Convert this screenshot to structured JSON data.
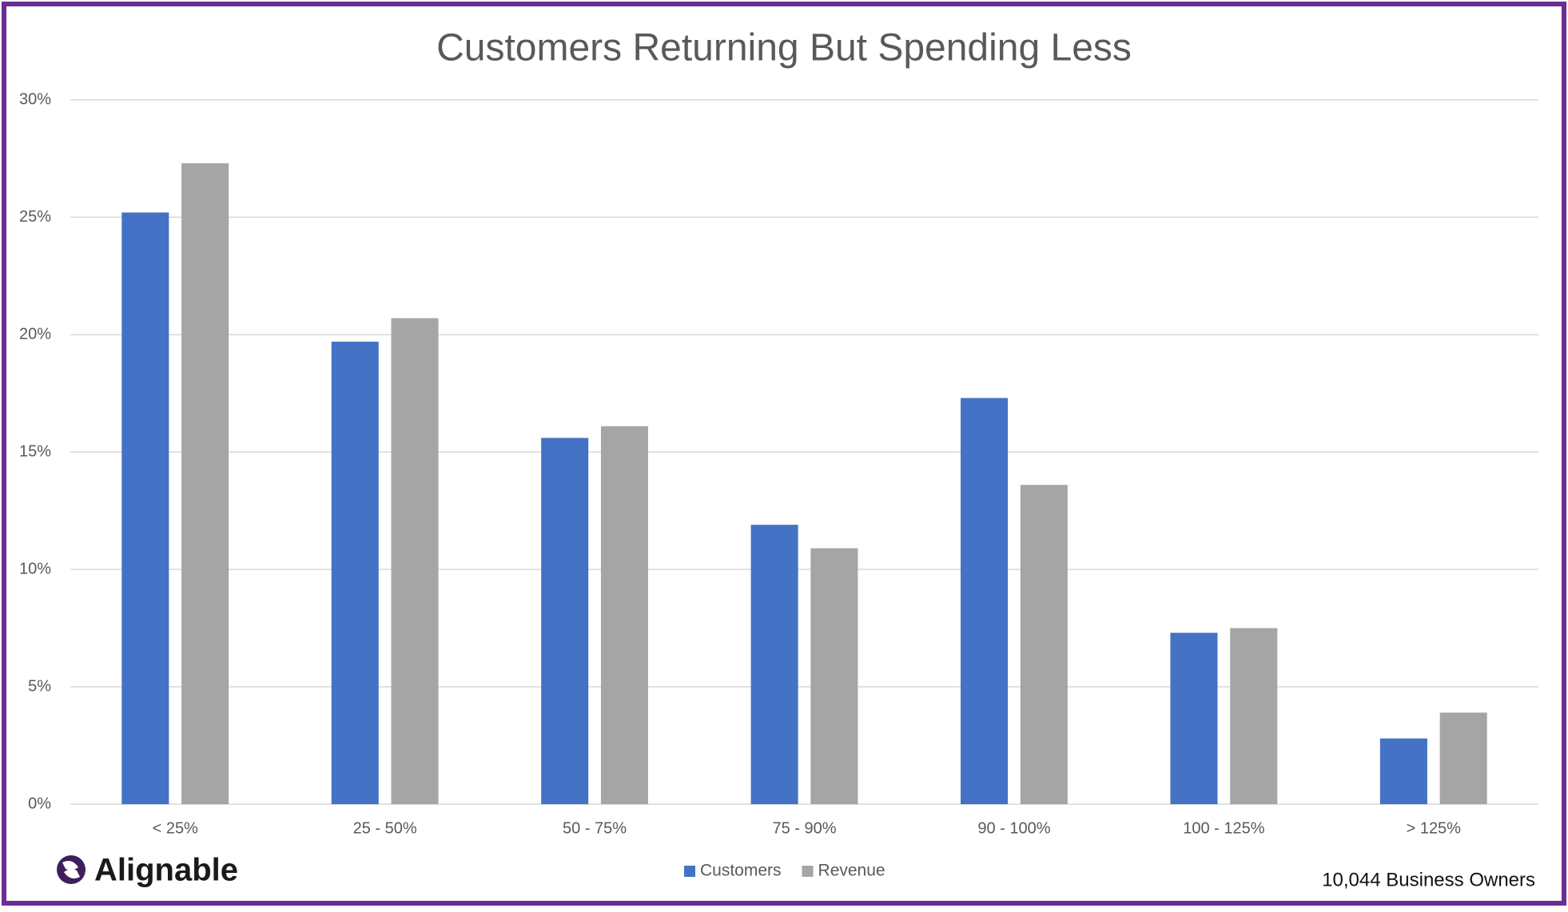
{
  "chart_data": {
    "type": "bar",
    "title": "Customers Returning But Spending Less",
    "categories": [
      "< 25%",
      "25 - 50%",
      "50 - 75%",
      "75 - 90%",
      "90 - 100%",
      "100 - 125%",
      "> 125%"
    ],
    "series": [
      {
        "name": "Customers",
        "color": "#4472c4",
        "values": [
          25.2,
          19.7,
          15.6,
          11.9,
          17.3,
          7.3,
          2.8
        ]
      },
      {
        "name": "Revenue",
        "color": "#a5a5a5",
        "values": [
          27.3,
          20.7,
          16.1,
          10.9,
          13.6,
          7.5,
          3.9
        ]
      }
    ],
    "ylim": [
      0,
      30
    ],
    "yticks": [
      {
        "value": 0,
        "label": "0%"
      },
      {
        "value": 5,
        "label": "5%"
      },
      {
        "value": 10,
        "label": "10%"
      },
      {
        "value": 15,
        "label": "15%"
      },
      {
        "value": 20,
        "label": "20%"
      },
      {
        "value": 25,
        "label": "25%"
      },
      {
        "value": 30,
        "label": "30%"
      }
    ],
    "grid": true,
    "legend": "bottom",
    "logo": "Alignable",
    "note": "10,044 Business Owners"
  }
}
